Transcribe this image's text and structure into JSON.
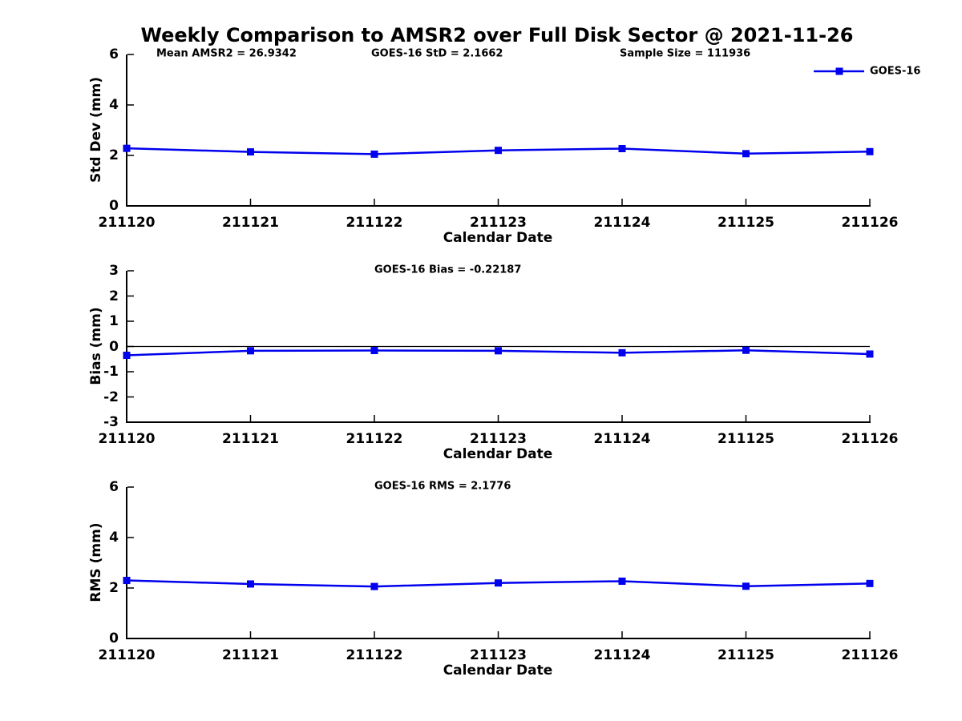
{
  "title": "Weekly Comparison to AMSR2 over Full Disk Sector @ 2021-11-26",
  "colors": {
    "series": "#0000EE",
    "axis": "#000000",
    "zero_line": "#000000",
    "background": "#FFFFFF"
  },
  "legend": {
    "label": "GOES-16",
    "position": "top-right"
  },
  "x_axis": {
    "label": "Calendar Date",
    "categories": [
      "211120",
      "211121",
      "211122",
      "211123",
      "211124",
      "211125",
      "211126"
    ]
  },
  "chart_data": [
    {
      "type": "line",
      "panel": "std-dev",
      "ylabel": "Std Dev (mm)",
      "xlabel": "Calendar Date",
      "categories": [
        "211120",
        "211121",
        "211122",
        "211123",
        "211124",
        "211125",
        "211126"
      ],
      "series": [
        {
          "name": "GOES-16",
          "values": [
            2.28,
            2.14,
            2.05,
            2.2,
            2.27,
            2.07,
            2.15
          ]
        }
      ],
      "ylim": [
        0,
        6
      ],
      "yticks": [
        0,
        2,
        4,
        6
      ],
      "zero_line": false,
      "grid": false,
      "annotations": [
        "Mean AMSR2 = 26.9342",
        "GOES-16 StD = 2.1662",
        "Sample Size = 111936"
      ]
    },
    {
      "type": "line",
      "panel": "bias",
      "ylabel": "Bias (mm)",
      "xlabel": "Calendar Date",
      "categories": [
        "211120",
        "211121",
        "211122",
        "211123",
        "211124",
        "211125",
        "211126"
      ],
      "series": [
        {
          "name": "GOES-16",
          "values": [
            -0.35,
            -0.17,
            -0.16,
            -0.17,
            -0.25,
            -0.15,
            -0.3
          ]
        }
      ],
      "ylim": [
        -3,
        3
      ],
      "yticks": [
        -3,
        -2,
        -1,
        0,
        1,
        2,
        3
      ],
      "zero_line": true,
      "grid": false,
      "annotations": [
        "GOES-16 Bias  = -0.22187"
      ]
    },
    {
      "type": "line",
      "panel": "rms",
      "ylabel": "RMS (mm)",
      "xlabel": "Calendar Date",
      "categories": [
        "211120",
        "211121",
        "211122",
        "211123",
        "211124",
        "211125",
        "211126"
      ],
      "series": [
        {
          "name": "GOES-16",
          "values": [
            2.3,
            2.16,
            2.06,
            2.2,
            2.27,
            2.07,
            2.18
          ]
        }
      ],
      "ylim": [
        0,
        6
      ],
      "yticks": [
        0,
        2,
        4,
        6
      ],
      "zero_line": false,
      "grid": false,
      "annotations": [
        "GOES-16 RMS = 2.1776"
      ]
    }
  ]
}
